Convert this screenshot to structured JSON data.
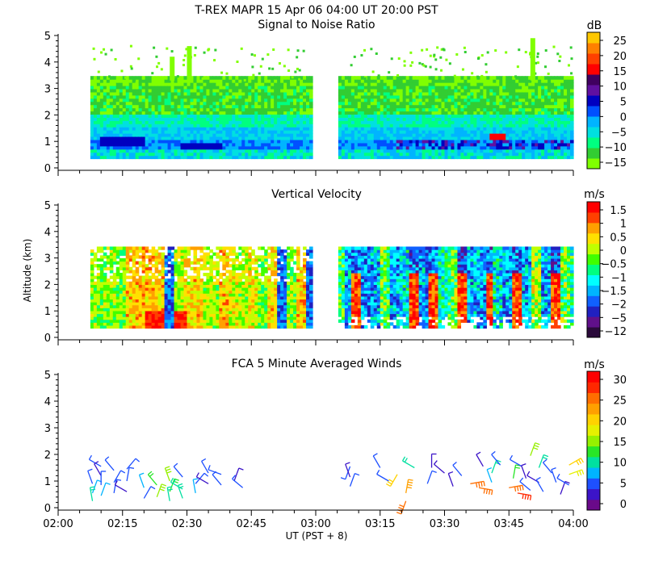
{
  "title": "T-REX   MAPR 15 Apr 06   04:00 UT   20:00   PST",
  "colors": {
    "snr": [
      "#80ff00",
      "#32cd32",
      "#00ff80",
      "#00e0e0",
      "#00b4ff",
      "#0050ff",
      "#0000c0",
      "#6010a0",
      "#400060",
      "#ff0000",
      "#ff4000",
      "#ff8000",
      "#ffc800"
    ],
    "vel": [
      "#2a0a3a",
      "#60108a",
      "#2020c0",
      "#1060ff",
      "#00b4ff",
      "#00ffff",
      "#00ff80",
      "#40ff00",
      "#c0ff00",
      "#ffe000",
      "#ffa000",
      "#ff4000",
      "#ff0000"
    ],
    "wind": [
      "#6a0a8a",
      "#3c14c8",
      "#1e50ff",
      "#00b4ff",
      "#00e0a0",
      "#28e628",
      "#96f000",
      "#e6f000",
      "#ffd200",
      "#ffa000",
      "#ff6e00",
      "#ff2800",
      "#ff0000"
    ]
  },
  "chart_data": [
    {
      "id": "snr",
      "type": "heatmap",
      "title": "Signal to Noise Ratio",
      "units": "dB",
      "ylabel": "",
      "ylim": [
        0,
        5
      ],
      "yticks": [
        "0",
        "1",
        "2",
        "3",
        "4",
        "5"
      ],
      "colorbar_labels": [
        "25",
        "20",
        "15",
        "10",
        "5",
        "0",
        "−5",
        "−10",
        "−15"
      ],
      "colorbar_range": [
        -17.5,
        27.5
      ],
      "data_gaps_ut": [
        [
          "02:00",
          "02:07"
        ],
        [
          "02:59",
          "03:05"
        ],
        [
          "04:00",
          "04:00"
        ]
      ],
      "signal_top_km": 3.3
    },
    {
      "id": "vel",
      "type": "heatmap",
      "title": "Vertical Velocity",
      "units": "m/s",
      "ylabel": "Altitude (km)",
      "ylim": [
        0,
        5
      ],
      "yticks": [
        "0",
        "1",
        "2",
        "3",
        "4",
        "5"
      ],
      "colorbar_labels": [
        "1.5",
        "1",
        "0.5",
        "0",
        "−0.5",
        "−1",
        "−1.5",
        "−2",
        "−5",
        "−12"
      ],
      "data_gaps_ut": [
        [
          "02:00",
          "02:07"
        ],
        [
          "02:59",
          "03:05"
        ]
      ],
      "signal_top_km": 3.3
    },
    {
      "id": "wind",
      "type": "scatter",
      "title": "FCA 5 Minute Averaged Winds",
      "units": "m/s",
      "ylabel": "",
      "ylim": [
        0,
        5
      ],
      "yticks": [
        "0",
        "1",
        "2",
        "3",
        "4",
        "5"
      ],
      "colorbar_labels": [
        "30",
        "25",
        "20",
        "15",
        "10",
        "5",
        "0"
      ],
      "colorbar_range": [
        0,
        32
      ],
      "barbs": [
        {
          "t": 8,
          "z": 0.9,
          "spd": 6,
          "dir": 340
        },
        {
          "t": 8,
          "z": 0.55,
          "spd": 8,
          "dir": 20
        },
        {
          "t": 8,
          "z": 0.25,
          "spd": 10,
          "dir": 350
        },
        {
          "t": 10,
          "z": 1.55,
          "spd": 5,
          "dir": 300
        },
        {
          "t": 10,
          "z": 1.2,
          "spd": 4,
          "dir": 330
        },
        {
          "t": 10,
          "z": 0.85,
          "spd": 6,
          "dir": 0
        },
        {
          "t": 10,
          "z": 0.45,
          "spd": 8,
          "dir": 20
        },
        {
          "t": 13,
          "z": 1.4,
          "spd": 5,
          "dir": 320
        },
        {
          "t": 13,
          "z": 0.95,
          "spd": 6,
          "dir": 30
        },
        {
          "t": 13,
          "z": 0.55,
          "spd": 7,
          "dir": 10
        },
        {
          "t": 16,
          "z": 1.45,
          "spd": 6,
          "dir": 40
        },
        {
          "t": 16,
          "z": 1.0,
          "spd": 5,
          "dir": 10
        },
        {
          "t": 16,
          "z": 0.6,
          "spd": 4,
          "dir": 300
        },
        {
          "t": 20,
          "z": 0.75,
          "spd": 8,
          "dir": 340
        },
        {
          "t": 20,
          "z": 0.35,
          "spd": 6,
          "dir": 30
        },
        {
          "t": 23,
          "z": 0.85,
          "spd": 14,
          "dir": 320
        },
        {
          "t": 23,
          "z": 0.4,
          "spd": 16,
          "dir": 20
        },
        {
          "t": 26,
          "z": 1.0,
          "spd": 16,
          "dir": 340
        },
        {
          "t": 26,
          "z": 0.6,
          "spd": 14,
          "dir": 20
        },
        {
          "t": 26,
          "z": 0.25,
          "spd": 12,
          "dir": 350
        },
        {
          "t": 29,
          "z": 1.15,
          "spd": 6,
          "dir": 320
        },
        {
          "t": 29,
          "z": 0.7,
          "spd": 12,
          "dir": 300
        },
        {
          "t": 29,
          "z": 0.35,
          "spd": 10,
          "dir": 340
        },
        {
          "t": 32,
          "z": 0.9,
          "spd": 6,
          "dir": 40
        },
        {
          "t": 32,
          "z": 0.55,
          "spd": 8,
          "dir": 350
        },
        {
          "t": 35,
          "z": 1.3,
          "spd": 5,
          "dir": 330
        },
        {
          "t": 35,
          "z": 0.9,
          "spd": 4,
          "dir": 300
        },
        {
          "t": 38,
          "z": 1.25,
          "spd": 5,
          "dir": 290
        },
        {
          "t": 38,
          "z": 0.85,
          "spd": 6,
          "dir": 320
        },
        {
          "t": 41,
          "z": 1.0,
          "spd": 4,
          "dir": 20
        },
        {
          "t": 43,
          "z": 0.75,
          "spd": 6,
          "dir": 310
        },
        {
          "t": 68,
          "z": 1.55,
          "spd": 6,
          "dir": 200
        },
        {
          "t": 68,
          "z": 1.15,
          "spd": 4,
          "dir": 340
        },
        {
          "t": 68,
          "z": 0.8,
          "spd": 5,
          "dir": 20
        },
        {
          "t": 75,
          "z": 1.5,
          "spd": 5,
          "dir": 330
        },
        {
          "t": 77,
          "z": 1.0,
          "spd": 6,
          "dir": 300
        },
        {
          "t": 79,
          "z": 1.25,
          "spd": 20,
          "dir": 210
        },
        {
          "t": 81,
          "z": 0.55,
          "spd": 24,
          "dir": 10
        },
        {
          "t": 81,
          "z": 0.25,
          "spd": 26,
          "dir": 200
        },
        {
          "t": 83,
          "z": 1.5,
          "spd": 12,
          "dir": 300
        },
        {
          "t": 86,
          "z": 0.9,
          "spd": 5,
          "dir": 20
        },
        {
          "t": 87,
          "z": 1.5,
          "spd": 4,
          "dir": 0
        },
        {
          "t": 90,
          "z": 1.3,
          "spd": 4,
          "dir": 310
        },
        {
          "t": 92,
          "z": 0.8,
          "spd": 4,
          "dir": 340
        },
        {
          "t": 94,
          "z": 1.2,
          "spd": 5,
          "dir": 320
        },
        {
          "t": 96,
          "z": 0.9,
          "spd": 26,
          "dir": 80
        },
        {
          "t": 98,
          "z": 0.75,
          "spd": 25,
          "dir": 100
        },
        {
          "t": 99,
          "z": 1.55,
          "spd": 4,
          "dir": 330
        },
        {
          "t": 101,
          "z": 1.3,
          "spd": 12,
          "dir": 20
        },
        {
          "t": 101,
          "z": 0.95,
          "spd": 8,
          "dir": 340
        },
        {
          "t": 103,
          "z": 1.6,
          "spd": 6,
          "dir": 320
        },
        {
          "t": 105,
          "z": 0.75,
          "spd": 27,
          "dir": 80
        },
        {
          "t": 106,
          "z": 1.1,
          "spd": 14,
          "dir": 10
        },
        {
          "t": 107,
          "z": 0.55,
          "spd": 28,
          "dir": 100
        },
        {
          "t": 108,
          "z": 1.55,
          "spd": 6,
          "dir": 300
        },
        {
          "t": 109,
          "z": 1.1,
          "spd": 4,
          "dir": 340
        },
        {
          "t": 110,
          "z": 1.95,
          "spd": 16,
          "dir": 20
        },
        {
          "t": 110,
          "z": 0.65,
          "spd": 5,
          "dir": 310
        },
        {
          "t": 112,
          "z": 1.5,
          "spd": 12,
          "dir": 20
        },
        {
          "t": 112,
          "z": 0.95,
          "spd": 4,
          "dir": 300
        },
        {
          "t": 113,
          "z": 0.6,
          "spd": 6,
          "dir": 330
        },
        {
          "t": 115,
          "z": 1.3,
          "spd": 5,
          "dir": 320
        },
        {
          "t": 116,
          "z": 0.95,
          "spd": 6,
          "dir": 340
        },
        {
          "t": 117,
          "z": 0.5,
          "spd": 4,
          "dir": 20
        },
        {
          "t": 119,
          "z": 1.6,
          "spd": 20,
          "dir": 60
        },
        {
          "t": 119,
          "z": 1.25,
          "spd": 18,
          "dir": 70
        },
        {
          "t": 119,
          "z": 0.85,
          "spd": 5,
          "dir": 300
        }
      ]
    }
  ],
  "x_axis": {
    "label": "UT  (PST + 8)",
    "range_min": [
      0,
      120
    ],
    "tick_labels": [
      "02:00",
      "02:15",
      "02:30",
      "02:45",
      "03:00",
      "03:15",
      "03:30",
      "03:45",
      "04:00"
    ]
  }
}
